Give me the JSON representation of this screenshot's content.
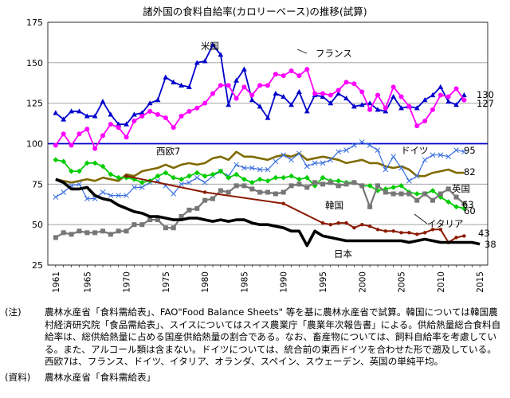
{
  "chart_data": {
    "type": "line",
    "title": "諸外国の食料自給率(カロリーベース)の推移(試算)",
    "xlabel": "",
    "ylabel": "",
    "xlim": [
      1960,
      2016
    ],
    "ylim": [
      25,
      175
    ],
    "yticks": [
      25,
      50,
      75,
      100,
      125,
      150,
      175
    ],
    "xticks": [
      1961,
      1965,
      1970,
      1975,
      1980,
      1985,
      1990,
      1995,
      2000,
      2005,
      2010,
      2015
    ],
    "grid": "horizontal",
    "reference_line": 100,
    "series": [
      {
        "name": "米国",
        "color": "#0000cc",
        "marker": "triangle",
        "end_label": "130",
        "x": [
          1961,
          1962,
          1963,
          1964,
          1965,
          1966,
          1967,
          1968,
          1969,
          1970,
          1971,
          1972,
          1973,
          1974,
          1975,
          1976,
          1977,
          1978,
          1979,
          1980,
          1981,
          1982,
          1983,
          1984,
          1985,
          1986,
          1987,
          1988,
          1989,
          1990,
          1991,
          1992,
          1993,
          1994,
          1995,
          1996,
          1997,
          1998,
          1999,
          2000,
          2001,
          2002,
          2003,
          2004,
          2005,
          2006,
          2007,
          2008,
          2009,
          2010,
          2011,
          2012,
          2013
        ],
        "values": [
          119,
          115,
          120,
          120,
          117,
          117,
          126,
          118,
          112,
          112,
          118,
          119,
          125,
          127,
          141,
          138,
          136,
          135,
          150,
          151,
          161,
          155,
          124,
          139,
          146,
          127,
          123,
          116,
          131,
          129,
          124,
          132,
          120,
          130,
          129,
          125,
          131,
          128,
          123,
          124,
          125,
          121,
          120,
          129,
          122,
          123,
          122,
          127,
          130,
          135,
          126,
          124,
          130
        ]
      },
      {
        "name": "フランス",
        "color": "#ff00ff",
        "marker": "circle",
        "end_label": "127",
        "x": [
          1961,
          1962,
          1963,
          1964,
          1965,
          1966,
          1967,
          1968,
          1969,
          1970,
          1971,
          1972,
          1973,
          1974,
          1975,
          1976,
          1977,
          1978,
          1979,
          1980,
          1981,
          1982,
          1983,
          1984,
          1985,
          1986,
          1987,
          1988,
          1989,
          1990,
          1991,
          1992,
          1993,
          1994,
          1995,
          1996,
          1997,
          1998,
          1999,
          2000,
          2001,
          2002,
          2003,
          2004,
          2005,
          2006,
          2007,
          2008,
          2009,
          2010,
          2011,
          2012,
          2013
        ],
        "values": [
          99,
          106,
          99,
          106,
          109,
          97,
          105,
          112,
          110,
          104,
          114,
          117,
          120,
          118,
          116,
          110,
          117,
          120,
          122,
          125,
          131,
          136,
          136,
          128,
          135,
          130,
          136,
          136,
          143,
          142,
          145,
          142,
          146,
          131,
          131,
          130,
          133,
          138,
          137,
          132,
          121,
          130,
          122,
          135,
          129,
          123,
          111,
          114,
          121,
          130,
          129,
          134,
          127
        ]
      },
      {
        "name": "西欧7",
        "color": "#806a00",
        "marker": "none",
        "end_label": "82",
        "x": [
          1961,
          1962,
          1963,
          1964,
          1965,
          1966,
          1967,
          1968,
          1969,
          1970,
          1971,
          1972,
          1973,
          1974,
          1975,
          1976,
          1977,
          1978,
          1979,
          1980,
          1981,
          1982,
          1983,
          1984,
          1985,
          1986,
          1987,
          1988,
          1989,
          1990,
          1991,
          1992,
          1993,
          1994,
          1995,
          1996,
          1997,
          1998,
          1999,
          2000,
          2001,
          2002,
          2003,
          2004,
          2005,
          2006,
          2007,
          2008,
          2009,
          2010,
          2011,
          2012,
          2013
        ],
        "values": [
          78,
          77,
          76,
          77,
          78,
          77,
          79,
          78,
          77,
          81,
          80,
          83,
          84,
          85,
          87,
          85,
          87,
          88,
          87,
          88,
          91,
          92,
          90,
          95,
          92,
          92,
          91,
          90,
          92,
          93,
          92,
          94,
          90,
          91,
          92,
          91,
          90,
          88,
          89,
          90,
          88,
          88,
          86,
          85,
          86,
          84,
          80,
          80,
          82,
          83,
          84,
          82,
          82
        ]
      },
      {
        "name": "ドイツ",
        "color": "#3a6fe0",
        "marker": "cross",
        "end_label": "95",
        "x": [
          1961,
          1962,
          1963,
          1964,
          1965,
          1966,
          1967,
          1968,
          1969,
          1970,
          1971,
          1972,
          1973,
          1974,
          1975,
          1976,
          1977,
          1978,
          1979,
          1980,
          1981,
          1982,
          1983,
          1984,
          1985,
          1986,
          1987,
          1988,
          1989,
          1990,
          1991,
          1992,
          1993,
          1994,
          1995,
          1996,
          1997,
          1998,
          1999,
          2000,
          2001,
          2002,
          2003,
          2004,
          2005,
          2006,
          2007,
          2008,
          2009,
          2010,
          2011,
          2012,
          2013
        ],
        "values": [
          67,
          70,
          74,
          75,
          66,
          66,
          70,
          68,
          68,
          68,
          73,
          73,
          76,
          77,
          74,
          69,
          75,
          76,
          79,
          76,
          80,
          83,
          80,
          87,
          85,
          85,
          84,
          84,
          89,
          93,
          90,
          94,
          86,
          88,
          88,
          90,
          95,
          96,
          99,
          101,
          99,
          96,
          84,
          92,
          85,
          77,
          80,
          90,
          93,
          93,
          92,
          96,
          95
        ]
      },
      {
        "name": "イタリア",
        "color": "#00cc00",
        "marker": "diamond",
        "end_label": "60",
        "x": [
          1961,
          1962,
          1963,
          1964,
          1965,
          1966,
          1967,
          1968,
          1969,
          1970,
          1971,
          1972,
          1973,
          1974,
          1975,
          1976,
          1977,
          1978,
          1979,
          1980,
          1981,
          1982,
          1983,
          1984,
          1985,
          1986,
          1987,
          1988,
          1989,
          1990,
          1991,
          1992,
          1993,
          1994,
          1995,
          1996,
          1997,
          1998,
          1999,
          2000,
          2001,
          2002,
          2003,
          2004,
          2005,
          2006,
          2007,
          2008,
          2009,
          2010,
          2011,
          2012,
          2013
        ],
        "values": [
          90,
          89,
          83,
          83,
          88,
          88,
          86,
          81,
          79,
          79,
          78,
          76,
          77,
          80,
          82,
          79,
          78,
          80,
          82,
          80,
          81,
          83,
          79,
          81,
          78,
          76,
          78,
          77,
          79,
          79,
          80,
          78,
          79,
          74,
          79,
          77,
          77,
          76,
          76,
          74,
          74,
          71,
          72,
          73,
          74,
          70,
          69,
          69,
          71,
          67,
          64,
          61,
          60
        ]
      },
      {
        "name": "英国",
        "color": "#777777",
        "marker": "square",
        "end_label": "63",
        "x": [
          1961,
          1962,
          1963,
          1964,
          1965,
          1966,
          1967,
          1968,
          1969,
          1970,
          1971,
          1972,
          1973,
          1974,
          1975,
          1976,
          1977,
          1978,
          1979,
          1980,
          1981,
          1982,
          1983,
          1984,
          1985,
          1986,
          1987,
          1988,
          1989,
          1990,
          1991,
          1992,
          1993,
          1994,
          1995,
          1996,
          1997,
          1998,
          1999,
          2000,
          2001,
          2002,
          2003,
          2004,
          2005,
          2006,
          2007,
          2008,
          2009,
          2010,
          2011,
          2012,
          2013
        ],
        "values": [
          42,
          45,
          44,
          46,
          45,
          45,
          46,
          44,
          46,
          46,
          50,
          50,
          53,
          53,
          48,
          48,
          55,
          59,
          60,
          65,
          66,
          71,
          70,
          74,
          74,
          72,
          70,
          70,
          69,
          70,
          74,
          75,
          73,
          76,
          75,
          76,
          74,
          75,
          76,
          74,
          61,
          74,
          70,
          69,
          69,
          69,
          65,
          69,
          65,
          69,
          72,
          67,
          63
        ]
      },
      {
        "name": "韓国",
        "color": "#8b1a00",
        "marker": "dot_sparse",
        "end_label": "43",
        "x": [
          1970,
          1980,
          1990,
          1995,
          1996,
          1997,
          1998,
          1999,
          2000,
          2001,
          2002,
          2003,
          2004,
          2005,
          2006,
          2007,
          2008,
          2009,
          2010,
          2011,
          2012,
          2013
        ],
        "values": [
          80,
          70,
          63,
          51,
          50,
          51,
          51,
          48,
          50,
          49,
          47,
          46,
          46,
          45,
          45,
          44,
          45,
          47,
          47,
          39,
          42,
          43
        ]
      },
      {
        "name": "日本",
        "color": "#000000",
        "marker": "none",
        "end_label": "38",
        "x": [
          1961,
          1962,
          1963,
          1964,
          1965,
          1966,
          1967,
          1968,
          1969,
          1970,
          1971,
          1972,
          1973,
          1974,
          1975,
          1976,
          1977,
          1978,
          1979,
          1980,
          1981,
          1982,
          1983,
          1984,
          1985,
          1986,
          1987,
          1988,
          1989,
          1990,
          1991,
          1992,
          1993,
          1994,
          1995,
          1996,
          1997,
          1998,
          1999,
          2000,
          2001,
          2002,
          2003,
          2004,
          2005,
          2006,
          2007,
          2008,
          2009,
          2010,
          2011,
          2012,
          2013,
          2014,
          2015
        ],
        "values": [
          78,
          76,
          72,
          72,
          73,
          68,
          66,
          65,
          62,
          60,
          58,
          57,
          55,
          55,
          54,
          53,
          53,
          54,
          54,
          53,
          52,
          53,
          52,
          53,
          53,
          51,
          50,
          50,
          49,
          48,
          46,
          46,
          37,
          46,
          43,
          42,
          41,
          40,
          40,
          40,
          40,
          40,
          40,
          40,
          40,
          39,
          40,
          41,
          40,
          39,
          39,
          39,
          39,
          39,
          38
        ]
      }
    ]
  },
  "notes": {
    "note_head": "(注)",
    "note_text": "農林水産省「食料需給表」、FAO\"Food Balance Sheets\" 等を基に農林水産省で試算。韓国については韓国農村経済研究院「食品需給表」、スイスについてはスイス農業庁「農業年次報告書」による。供給熱量総合食料自給率は、総供給熱量に占める国産供給熱量の割合である。なお、畜産物については、飼料自給率を考慮している。また、アルコール類は含まない。ドイツについては、統合前の東西ドイツを合わせた形で遡及している。西欧7は、フランス、ドイツ、イタリア、オランダ、スペイン、スウェーデン、英国の単純平均。",
    "source_head": "(資料)",
    "source_text": "農林水産省「食料需給表」"
  }
}
